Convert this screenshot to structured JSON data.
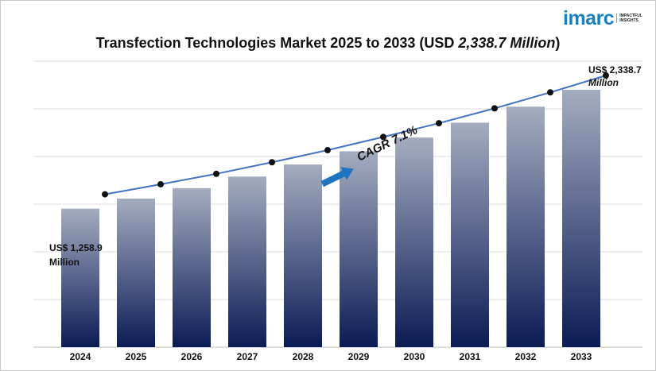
{
  "logo": {
    "word": "imarc",
    "tag_line1": "IMPACTFUL",
    "tag_line2": "INSIGHTS"
  },
  "title": {
    "main": "Transfection Technologies Market 2025 to 2033 (USD ",
    "highlight": "2,338.7 Million",
    "end": ")"
  },
  "colors": {
    "bar_top": "#a4acc0",
    "bar_bottom": "#0b1c55",
    "line": "#4472c4",
    "marker": "#111111",
    "arrow": "#1f73bf",
    "grid": "#dddddd"
  },
  "chart_data": {
    "type": "bar",
    "title": "Transfection Technologies Market 2025 to 2033 (USD 2,338.7 Million)",
    "categories": [
      "2024",
      "2025",
      "2026",
      "2027",
      "2028",
      "2029",
      "2030",
      "2031",
      "2032",
      "2033"
    ],
    "values": [
      1258.9,
      1350,
      1445,
      1550,
      1660,
      1780,
      1905,
      2040,
      2185,
      2338.7
    ],
    "trend_line": true,
    "xlabel": "",
    "ylabel": "",
    "grid": true,
    "annotations": {
      "start_label_1": "US$ 1,258.9",
      "start_label_2": "Million",
      "end_label_1": "US$ 2,338.7",
      "end_label_2": "Million",
      "cagr": "CAGR 7.1%"
    }
  }
}
